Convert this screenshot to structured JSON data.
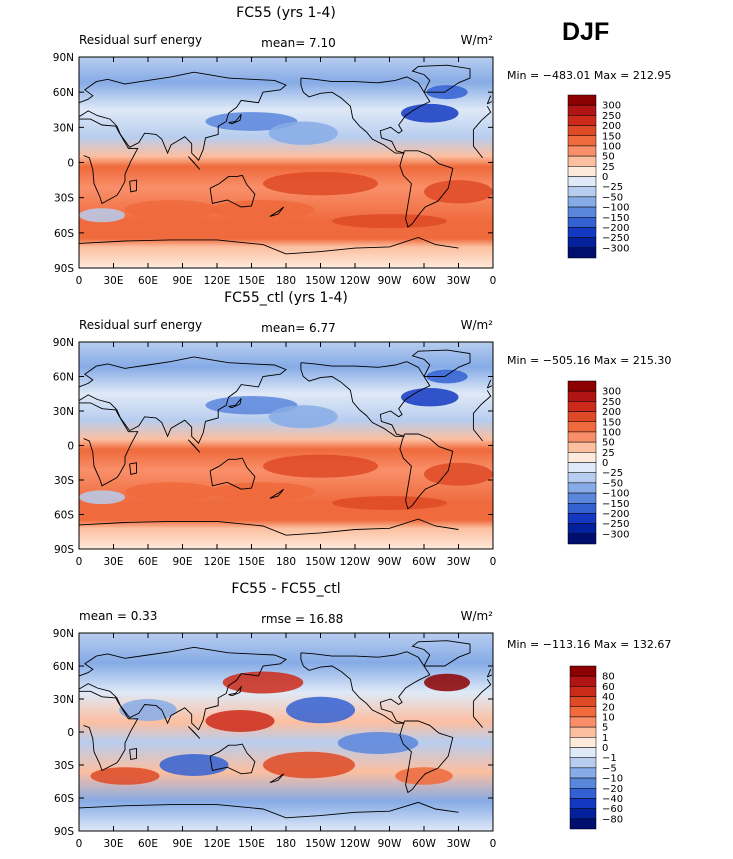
{
  "season": "DJF",
  "chart_data": [
    {
      "type": "heatmap",
      "title": "FC55 (yrs 1-4)",
      "left_label": "Residual surf energy",
      "units": "W/m²",
      "stats": "mean=    7.10",
      "minmax": "Min = −483.01 Max = 212.95",
      "min": -483.01,
      "max": 212.95,
      "mean": 7.1,
      "xlabel": "",
      "ylabel": "",
      "x_ticks": [
        "0",
        "30E",
        "60E",
        "90E",
        "120E",
        "150E",
        "180",
        "150W",
        "120W",
        "90W",
        "60W",
        "30W",
        "0"
      ],
      "y_ticks": [
        "90N",
        "60N",
        "30N",
        "0",
        "30S",
        "60S",
        "90S"
      ],
      "legend_levels": [
        "300",
        "250",
        "200",
        "150",
        "100",
        "50",
        "25",
        "0",
        "−25",
        "−50",
        "−100",
        "−150",
        "−200",
        "−250",
        "−300"
      ],
      "legend_colors": [
        "#8b0000",
        "#b01414",
        "#cc2a1a",
        "#de4a26",
        "#ef6a3c",
        "#f98f6a",
        "#fcbfa0",
        "#feeadb",
        "#dfe9f7",
        "#b7cdef",
        "#86abe6",
        "#5a86dc",
        "#3461d2",
        "#1339c2",
        "#03219b",
        "#000e70"
      ]
    },
    {
      "type": "heatmap",
      "title": "FC55_ctl (yrs 1-4)",
      "left_label": "Residual surf energy",
      "units": "W/m²",
      "stats": "mean=    6.77",
      "minmax": "Min = −505.16 Max = 215.30",
      "min": -505.16,
      "max": 215.3,
      "mean": 6.77,
      "xlabel": "",
      "ylabel": "",
      "x_ticks": [
        "0",
        "30E",
        "60E",
        "90E",
        "120E",
        "150E",
        "180",
        "150W",
        "120W",
        "90W",
        "60W",
        "30W",
        "0"
      ],
      "y_ticks": [
        "90N",
        "60N",
        "30N",
        "0",
        "30S",
        "60S",
        "90S"
      ],
      "legend_levels": [
        "300",
        "250",
        "200",
        "150",
        "100",
        "50",
        "25",
        "0",
        "−25",
        "−50",
        "−100",
        "−150",
        "−200",
        "−250",
        "−300"
      ],
      "legend_colors": [
        "#8b0000",
        "#b01414",
        "#cc2a1a",
        "#de4a26",
        "#ef6a3c",
        "#f98f6a",
        "#fcbfa0",
        "#feeadb",
        "#dfe9f7",
        "#b7cdef",
        "#86abe6",
        "#5a86dc",
        "#3461d2",
        "#1339c2",
        "#03219b",
        "#000e70"
      ]
    },
    {
      "type": "heatmap",
      "title": "FC55 - FC55_ctl",
      "left_label": "mean =    0.33",
      "units": "W/m²",
      "stats": "rmse =   16.88",
      "minmax": "Min = −113.16 Max = 132.67",
      "min": -113.16,
      "max": 132.67,
      "mean": 0.33,
      "rmse": 16.88,
      "xlabel": "",
      "ylabel": "",
      "x_ticks": [
        "0",
        "30E",
        "60E",
        "90E",
        "120E",
        "150E",
        "180",
        "150W",
        "120W",
        "90W",
        "60W",
        "30W",
        "0"
      ],
      "y_ticks": [
        "90N",
        "60N",
        "30N",
        "0",
        "30S",
        "60S",
        "90S"
      ],
      "legend_levels": [
        "80",
        "60",
        "40",
        "20",
        "10",
        "5",
        "1",
        "0",
        "−1",
        "−5",
        "−10",
        "−20",
        "−40",
        "−60",
        "−80"
      ],
      "legend_colors": [
        "#8b0000",
        "#b01414",
        "#cc2a1a",
        "#de4a26",
        "#ef6a3c",
        "#f98f6a",
        "#fcbfa0",
        "#feeadb",
        "#dfe9f7",
        "#b7cdef",
        "#86abe6",
        "#5a86dc",
        "#3461d2",
        "#1339c2",
        "#03219b",
        "#000e70"
      ]
    }
  ]
}
